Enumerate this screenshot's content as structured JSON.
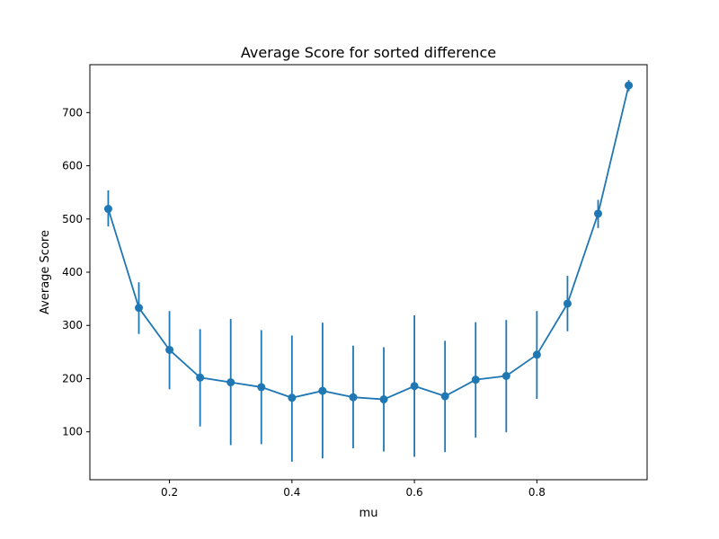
{
  "chart_data": {
    "type": "line",
    "title": "Average Score for sorted difference",
    "xlabel": "mu",
    "ylabel": "Average Score",
    "xlim": [
      0.07,
      0.98
    ],
    "ylim": [
      10,
      790
    ],
    "x_ticks": [
      0.2,
      0.4,
      0.6,
      0.8
    ],
    "x_tick_labels": [
      "0.2",
      "0.4",
      "0.6",
      "0.8"
    ],
    "y_ticks": [
      100,
      200,
      300,
      400,
      500,
      600,
      700
    ],
    "y_tick_labels": [
      "100",
      "200",
      "300",
      "400",
      "500",
      "600",
      "700"
    ],
    "grid": false,
    "color": "#1f77b4",
    "series": [
      {
        "x": [
          0.1,
          0.15,
          0.2,
          0.25,
          0.3,
          0.35,
          0.4,
          0.45,
          0.5,
          0.55,
          0.6,
          0.65,
          0.7,
          0.75,
          0.8,
          0.85,
          0.9,
          0.95
        ],
        "y": [
          519,
          333,
          254,
          202,
          193,
          184,
          164,
          177,
          165,
          161,
          186,
          167,
          198,
          205,
          245,
          341,
          510,
          751
        ],
        "yerr_low": [
          486,
          284,
          180,
          110,
          75,
          77,
          44,
          50,
          69,
          63,
          53,
          62,
          89,
          99,
          162,
          289,
          483,
          740
        ],
        "yerr_high": [
          554,
          381,
          327,
          293,
          312,
          291,
          281,
          305,
          262,
          259,
          319,
          271,
          306,
          310,
          327,
          393,
          536,
          761
        ]
      }
    ]
  }
}
